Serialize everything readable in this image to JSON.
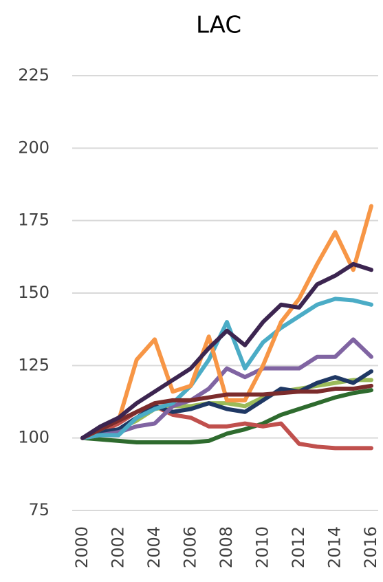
{
  "chart_data": {
    "type": "line",
    "title": "LAC",
    "x": [
      2000,
      2001,
      2002,
      2003,
      2004,
      2005,
      2006,
      2007,
      2008,
      2009,
      2010,
      2011,
      2012,
      2013,
      2014,
      2015,
      2016
    ],
    "xlim": [
      2000,
      2016
    ],
    "xticks": [
      2000,
      2002,
      2004,
      2006,
      2008,
      2010,
      2012,
      2014,
      2016
    ],
    "ylim": [
      75,
      225
    ],
    "yticks": [
      75,
      100,
      125,
      150,
      175,
      200,
      225
    ],
    "grid": true,
    "series": [
      {
        "color": "#2e6b2e",
        "values": [
          100,
          99.5,
          99,
          98.5,
          98.5,
          98.5,
          98.5,
          99,
          101.5,
          103,
          105,
          108,
          110,
          112,
          114,
          115.5,
          116.5
        ]
      },
      {
        "color": "#c0504d",
        "values": [
          100,
          102,
          105,
          109,
          111,
          108,
          107,
          104,
          104,
          105,
          104,
          105,
          98,
          97,
          96.5,
          96.5,
          96.5
        ]
      },
      {
        "color": "#9bbb59",
        "values": [
          100,
          101,
          103,
          106,
          110,
          111,
          111,
          112,
          112,
          111,
          114,
          116,
          117,
          118,
          119,
          120,
          120
        ]
      },
      {
        "color": "#1f3864",
        "values": [
          100,
          102,
          103,
          107,
          111,
          109,
          110,
          112,
          110,
          109,
          113,
          117,
          116,
          119,
          121,
          119,
          123
        ]
      },
      {
        "color": "#8064a2",
        "values": [
          100,
          101,
          102,
          104,
          105,
          111,
          113,
          117,
          124,
          121,
          124,
          124,
          124,
          128,
          128,
          134,
          128
        ]
      },
      {
        "color": "#4bacc6",
        "values": [
          100,
          101,
          101,
          107,
          110,
          112,
          118,
          127,
          140,
          124,
          133,
          138,
          142,
          146,
          148,
          147.5,
          146
        ]
      },
      {
        "color": "#f79646",
        "values": [
          100,
          103,
          106,
          127,
          134,
          116,
          118,
          135,
          113,
          113,
          125,
          140,
          148,
          160,
          171,
          158,
          180
        ]
      },
      {
        "color": "#7b2c2c",
        "values": [
          100,
          103,
          106,
          109,
          112,
          113,
          113,
          114,
          115,
          115,
          115,
          115.5,
          116,
          116,
          117,
          117,
          118
        ]
      },
      {
        "color": "#3c2550",
        "values": [
          100,
          104,
          107,
          112,
          116,
          120,
          124,
          131,
          137,
          132,
          140,
          146,
          145,
          153,
          156,
          160,
          158
        ]
      }
    ]
  }
}
